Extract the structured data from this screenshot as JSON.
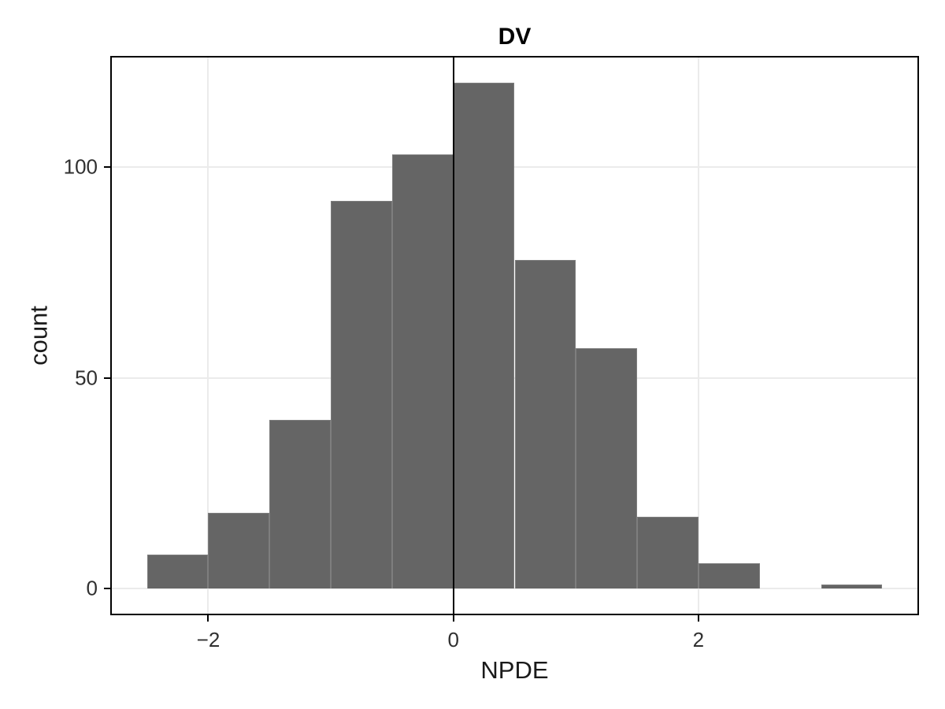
{
  "chart": {
    "title": "DV",
    "xlabel": "NPDE",
    "ylabel": "count"
  },
  "chart_data": {
    "type": "bar",
    "subtype": "histogram",
    "title": "DV",
    "xlabel": "NPDE",
    "ylabel": "count",
    "bin_edges": [
      -2.5,
      -2.0,
      -1.5,
      -1.0,
      -0.5,
      0.0,
      0.5,
      1.0,
      1.5,
      2.0,
      2.5,
      3.0,
      3.5
    ],
    "counts": [
      8,
      18,
      40,
      92,
      103,
      120,
      78,
      57,
      17,
      6,
      0,
      1
    ],
    "xlim": [
      -2.8,
      3.8
    ],
    "ylim": [
      -6.3,
      126.3
    ],
    "x_ticks": [
      -2,
      0,
      2
    ],
    "y_ticks": [
      0,
      50,
      100
    ],
    "reference_line_x": 0,
    "grid": "major-only",
    "legend": "none",
    "colors": {
      "bar_fill": "#656565",
      "bar_border": "#7e7e7e",
      "gridline": "#ebebeb",
      "reference_line": "#000000",
      "panel_border": "#000000",
      "tick_text": "#303030",
      "axis_title_text": "#1a1a1a",
      "title_text": "#000000",
      "background": "#ffffff"
    }
  }
}
